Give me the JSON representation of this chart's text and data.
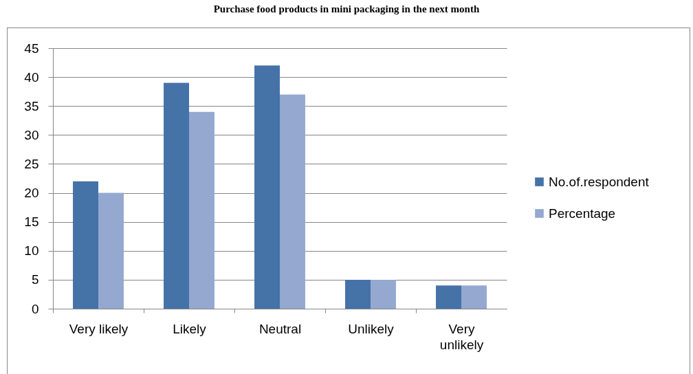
{
  "chart_data": {
    "type": "bar",
    "title": "Purchase food products in mini packaging in the next month",
    "categories": [
      "Very likely",
      "Likely",
      "Neutral",
      "Unlikely",
      "Very unlikely"
    ],
    "series": [
      {
        "name": "No.of.respondent",
        "color": "#4572a7",
        "values": [
          22,
          39,
          42,
          5,
          4
        ]
      },
      {
        "name": "Percentage",
        "color": "#94a8d0",
        "values": [
          20,
          34,
          37,
          5,
          4
        ]
      }
    ],
    "ylim": [
      0,
      45
    ],
    "yticks": [
      0,
      5,
      10,
      15,
      20,
      25,
      30,
      35,
      40,
      45
    ],
    "grid": "y",
    "legend": "right"
  }
}
